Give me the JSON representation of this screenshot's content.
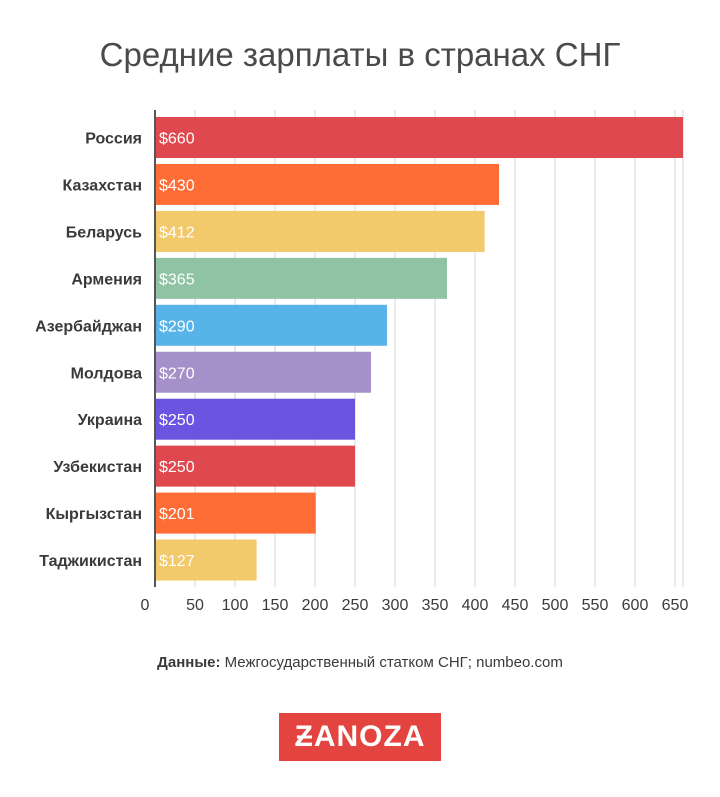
{
  "title": "Средние зарплаты в странах СНГ",
  "chart_data": {
    "type": "bar",
    "orientation": "horizontal",
    "categories": [
      "Россия",
      "Казахстан",
      "Беларусь",
      "Армения",
      "Азербайджан",
      "Молдова",
      "Украина",
      "Узбекистан",
      "Кыргызстан",
      "Таджикистан"
    ],
    "values": [
      660,
      430,
      412,
      365,
      290,
      270,
      250,
      250,
      201,
      127
    ],
    "value_labels": [
      "$660",
      "$430",
      "$412",
      "$365",
      "$290",
      "$270",
      "$250",
      "$250",
      "$201",
      "$127"
    ],
    "colors": [
      "#e0484f",
      "#ff6d37",
      "#f2c96b",
      "#8fc3a4",
      "#58b4e8",
      "#a690c9",
      "#6b55e0",
      "#e0484f",
      "#ff6d37",
      "#f2c96b"
    ],
    "x_ticks": [
      0,
      50,
      100,
      150,
      200,
      250,
      300,
      350,
      400,
      450,
      500,
      550,
      600,
      650
    ],
    "xlim": [
      0,
      660
    ],
    "grid": true,
    "xlabel": "",
    "ylabel": ""
  },
  "source": {
    "label": "Данные:",
    "text": "Межгосударственный статком СНГ; numbeo.com"
  },
  "logo": {
    "first_letter": "Z",
    "rest": "ANOZA",
    "color": "#e3443f"
  }
}
